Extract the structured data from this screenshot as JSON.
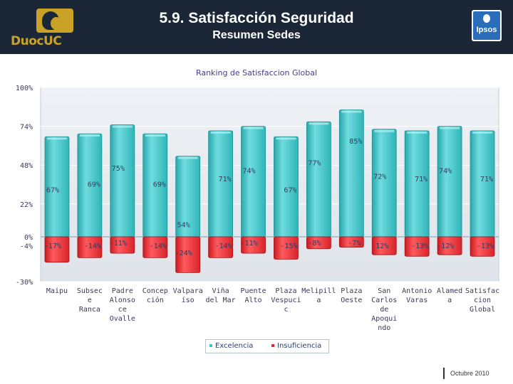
{
  "header": {
    "title": "5.9. Satisfacción Seguridad",
    "subtitle": "Resumen Sedes",
    "left_logo_text": "DuocUC",
    "right_logo_text": "Ipsos"
  },
  "chart_data": {
    "type": "bar",
    "title": "Ranking de Satisfaccion Global",
    "ylim": [
      -30,
      100
    ],
    "yticks": [
      "100%",
      "74%",
      "48%",
      "22%",
      "0%",
      "-4%",
      "-30%"
    ],
    "categories": [
      [
        "Maipu"
      ],
      [
        "Subsec",
        "e",
        "Ranca"
      ],
      [
        "Padre",
        "Alonso",
        "ce",
        "Ovalle"
      ],
      [
        "Concep",
        "ción"
      ],
      [
        "Valpara",
        "íso"
      ],
      [
        "Viña",
        "del Mar"
      ],
      [
        "Puente",
        "Alto"
      ],
      [
        "Plaza",
        "Vespuci",
        "c"
      ],
      [
        "Melipill",
        "a"
      ],
      [
        "Plaza",
        "Oeste"
      ],
      [
        "San",
        "Carlos",
        "de",
        "Apoqui",
        "ndo"
      ],
      [
        "Antonio",
        "Varas"
      ],
      [
        "Alamed",
        "a"
      ],
      [
        "Satisfac",
        "cion",
        "Global"
      ]
    ],
    "series": [
      {
        "name": "Excelencia",
        "color": "#3fc1c4",
        "values": [
          67,
          69,
          75,
          69,
          54,
          71,
          74,
          67,
          77,
          85,
          72,
          71,
          74,
          71
        ],
        "labels": [
          "67%",
          "69%",
          "75%",
          "69%",
          "54%",
          "71%",
          "74%",
          "67%",
          "77%",
          "85%",
          "72%",
          "71%",
          "74%",
          "71%"
        ]
      },
      {
        "name": "Insuficiencia",
        "color": "#e8262b",
        "values": [
          -17,
          -14,
          -11,
          -14,
          -24,
          -14,
          -11,
          -15,
          -8,
          -7,
          -12,
          -13,
          -12,
          -13
        ],
        "labels": [
          "-17%",
          "-14%",
          "-11%",
          "-14%",
          "-24%",
          "-14%",
          "-11%",
          "-15%",
          "-8%",
          "-7%",
          "-12%",
          "-13%",
          "-12%",
          "-13%"
        ]
      }
    ]
  },
  "legend": {
    "items": [
      "Excelencia",
      "Insuficiencia"
    ]
  },
  "footer": {
    "date": "Octubre 2010"
  }
}
